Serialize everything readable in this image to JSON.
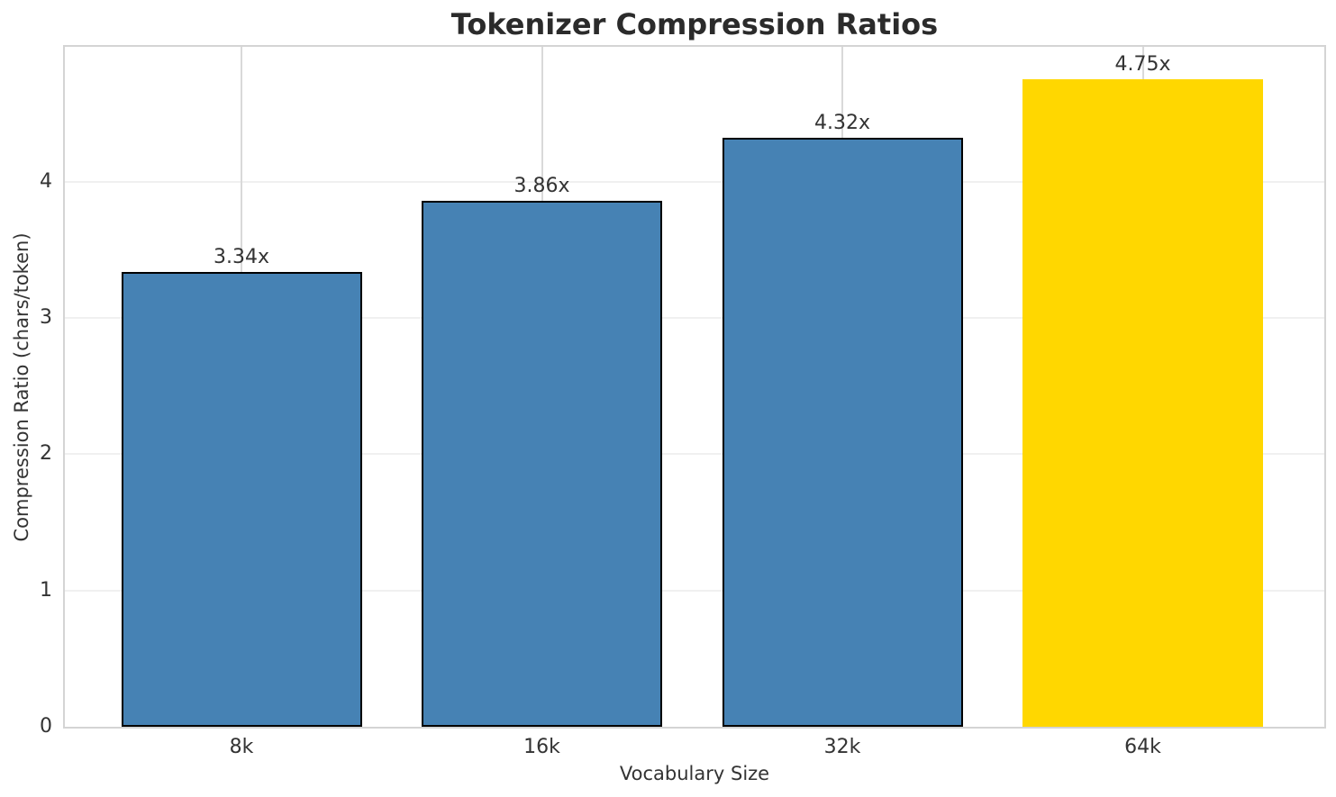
{
  "chart_data": {
    "type": "bar",
    "title": "Tokenizer Compression Ratios",
    "xlabel": "Vocabulary Size",
    "ylabel": "Compression Ratio (chars/token)",
    "categories": [
      "8k",
      "16k",
      "32k",
      "64k"
    ],
    "values": [
      3.34,
      3.86,
      4.32,
      4.75
    ],
    "bar_labels": [
      "3.34x",
      "3.86x",
      "4.32x",
      "4.75x"
    ],
    "yticks": [
      0,
      1,
      2,
      3,
      4
    ],
    "ylim": [
      0,
      4.99
    ],
    "grid": "on",
    "legend": "none",
    "bar_colors": [
      "#4682b4",
      "#4682b4",
      "#4682b4",
      "#ffd700"
    ],
    "bar_edge_colors": [
      "#000000",
      "#000000",
      "#000000",
      "none"
    ],
    "colors": {
      "base_bar": "#4682b4",
      "highlight_bar": "#ffd700",
      "bar_edge": "#000000",
      "title_text": "#2b2b2b",
      "tick_text": "#333333",
      "spine": "#d4d4d4",
      "h_gridline": "#f0f0f0",
      "v_gridline": "#d9d9d9",
      "background": "#ffffff"
    }
  }
}
